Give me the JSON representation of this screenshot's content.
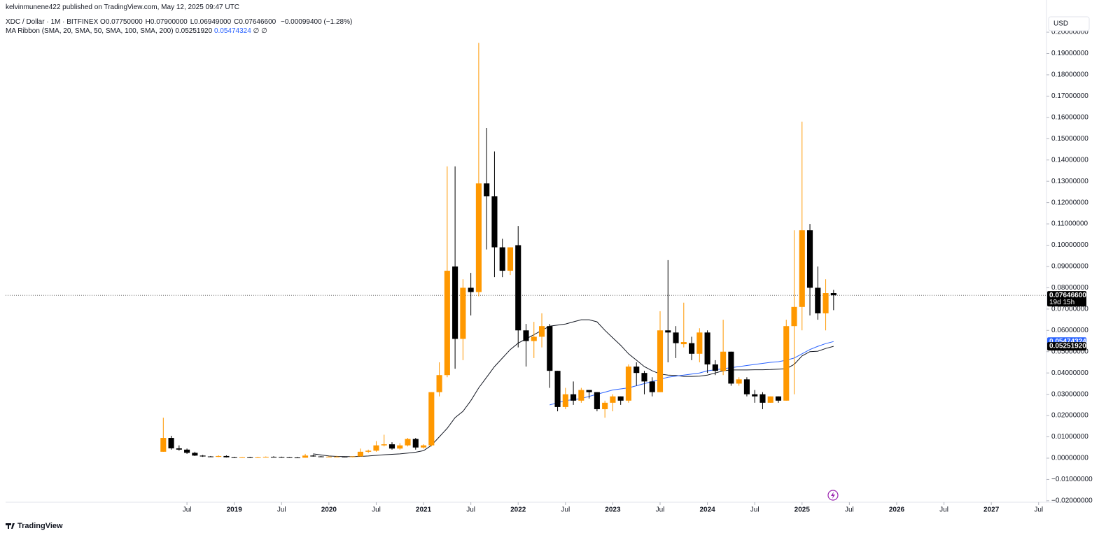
{
  "chart_data": {
    "type": "candlestick",
    "publisher": "kelvinmunene422 published on TradingView.com, May 12, 2025 09:47 UTC",
    "legend": {
      "symbol": "XDC / Dollar · 1M · BITFINEX",
      "fields": [
        {
          "key": "O",
          "text": "0.07750000"
        },
        {
          "key": "H",
          "text": "0.07900000"
        },
        {
          "key": "L",
          "text": "0.06949000"
        },
        {
          "key": "C",
          "text": "0.07646600"
        }
      ],
      "change": "−0.00099400 (−1.28%)"
    },
    "indicator": {
      "name": "MA Ribbon (SMA, 20, SMA, 50, SMA, 100, SMA, 200)",
      "empty": "∅ ∅"
    },
    "currency": "USD",
    "countdown": "19d 15h",
    "brand": "TradingView",
    "up_color": "#ff9800",
    "down_color": "#000000",
    "categories": [
      "2018-04",
      "2018-05",
      "2018-06",
      "2018-07",
      "2018-08",
      "2018-09",
      "2018-10",
      "2018-11",
      "2018-12",
      "2019-01",
      "2019-02",
      "2019-03",
      "2019-04",
      "2019-05",
      "2019-06",
      "2019-07",
      "2019-08",
      "2019-09",
      "2019-10",
      "2019-11",
      "2019-12",
      "2020-01",
      "2020-02",
      "2020-03",
      "2020-04",
      "2020-05",
      "2020-06",
      "2020-07",
      "2020-08",
      "2020-09",
      "2020-10",
      "2020-11",
      "2020-12",
      "2021-01",
      "2021-02",
      "2021-03",
      "2021-04",
      "2021-05",
      "2021-06",
      "2021-07",
      "2021-08",
      "2021-09",
      "2021-10",
      "2021-11",
      "2021-12",
      "2022-01",
      "2022-02",
      "2022-03",
      "2022-04",
      "2022-05",
      "2022-06",
      "2022-07",
      "2022-08",
      "2022-09",
      "2022-10",
      "2022-11",
      "2022-12",
      "2023-01",
      "2023-02",
      "2023-03",
      "2023-04",
      "2023-05",
      "2023-06",
      "2023-07",
      "2023-08",
      "2023-09",
      "2023-10",
      "2023-11",
      "2023-12",
      "2024-01",
      "2024-02",
      "2024-03",
      "2024-04",
      "2024-05",
      "2024-06",
      "2024-07",
      "2024-08",
      "2024-09",
      "2024-10",
      "2024-11",
      "2024-12",
      "2025-01",
      "2025-02",
      "2025-03",
      "2025-04",
      "2025-05"
    ],
    "candles": [
      {
        "o": 0.003,
        "h": 0.019,
        "l": 0.003,
        "c": 0.0095
      },
      {
        "o": 0.0095,
        "h": 0.0105,
        "l": 0.004,
        "c": 0.0046
      },
      {
        "o": 0.0046,
        "h": 0.006,
        "l": 0.0035,
        "c": 0.004
      },
      {
        "o": 0.004,
        "h": 0.0045,
        "l": 0.002,
        "c": 0.0025
      },
      {
        "o": 0.0025,
        "h": 0.003,
        "l": 0.001,
        "c": 0.0012
      },
      {
        "o": 0.0012,
        "h": 0.0015,
        "l": 0.0006,
        "c": 0.0008
      },
      {
        "o": 0.0008,
        "h": 0.001,
        "l": 0.0005,
        "c": 0.0006
      },
      {
        "o": 0.0006,
        "h": 0.0013,
        "l": 0.0005,
        "c": 0.001
      },
      {
        "o": 0.001,
        "h": 0.0013,
        "l": 0.0003,
        "c": 0.0004
      },
      {
        "o": 0.0004,
        "h": 0.0006,
        "l": 0.0003,
        "c": 0.0003
      },
      {
        "o": 0.0003,
        "h": 0.0005,
        "l": 0.0003,
        "c": 0.0004
      },
      {
        "o": 0.0004,
        "h": 0.0006,
        "l": 0.0003,
        "c": 0.0003
      },
      {
        "o": 0.0003,
        "h": 0.0006,
        "l": 0.0003,
        "c": 0.0004
      },
      {
        "o": 0.0004,
        "h": 0.0008,
        "l": 0.0003,
        "c": 0.0006
      },
      {
        "o": 0.0006,
        "h": 0.0009,
        "l": 0.0004,
        "c": 0.0005
      },
      {
        "o": 0.0005,
        "h": 0.0007,
        "l": 0.0003,
        "c": 0.0004
      },
      {
        "o": 0.0004,
        "h": 0.0005,
        "l": 0.0002,
        "c": 0.0003
      },
      {
        "o": 0.0003,
        "h": 0.0005,
        "l": 0.0002,
        "c": 0.0002
      },
      {
        "o": 0.0002,
        "h": 0.002,
        "l": 0.0002,
        "c": 0.0012
      },
      {
        "o": 0.0012,
        "h": 0.0016,
        "l": 0.0007,
        "c": 0.0008
      },
      {
        "o": 0.0008,
        "h": 0.001,
        "l": 0.0005,
        "c": 0.0006
      },
      {
        "o": 0.0006,
        "h": 0.0009,
        "l": 0.0005,
        "c": 0.0007
      },
      {
        "o": 0.0007,
        "h": 0.0011,
        "l": 0.0006,
        "c": 0.0007
      },
      {
        "o": 0.0007,
        "h": 0.0008,
        "l": 0.0004,
        "c": 0.0005
      },
      {
        "o": 0.0005,
        "h": 0.0009,
        "l": 0.0004,
        "c": 0.0008
      },
      {
        "o": 0.0008,
        "h": 0.0045,
        "l": 0.0007,
        "c": 0.003
      },
      {
        "o": 0.003,
        "h": 0.004,
        "l": 0.0025,
        "c": 0.0035
      },
      {
        "o": 0.0035,
        "h": 0.008,
        "l": 0.003,
        "c": 0.006
      },
      {
        "o": 0.006,
        "h": 0.011,
        "l": 0.0055,
        "c": 0.0065
      },
      {
        "o": 0.0065,
        "h": 0.0075,
        "l": 0.004,
        "c": 0.0045
      },
      {
        "o": 0.0045,
        "h": 0.007,
        "l": 0.004,
        "c": 0.006
      },
      {
        "o": 0.006,
        "h": 0.0095,
        "l": 0.0055,
        "c": 0.009
      },
      {
        "o": 0.009,
        "h": 0.0095,
        "l": 0.004,
        "c": 0.005
      },
      {
        "o": 0.005,
        "h": 0.0065,
        "l": 0.0045,
        "c": 0.006
      },
      {
        "o": 0.006,
        "h": 0.031,
        "l": 0.0055,
        "c": 0.031
      },
      {
        "o": 0.031,
        "h": 0.045,
        "l": 0.029,
        "c": 0.039
      },
      {
        "o": 0.039,
        "h": 0.137,
        "l": 0.038,
        "c": 0.088
      },
      {
        "o": 0.09,
        "h": 0.137,
        "l": 0.042,
        "c": 0.056
      },
      {
        "o": 0.056,
        "h": 0.084,
        "l": 0.046,
        "c": 0.08
      },
      {
        "o": 0.08,
        "h": 0.087,
        "l": 0.067,
        "c": 0.078
      },
      {
        "o": 0.078,
        "h": 0.195,
        "l": 0.076,
        "c": 0.129
      },
      {
        "o": 0.129,
        "h": 0.155,
        "l": 0.098,
        "c": 0.123
      },
      {
        "o": 0.123,
        "h": 0.144,
        "l": 0.085,
        "c": 0.099
      },
      {
        "o": 0.099,
        "h": 0.103,
        "l": 0.085,
        "c": 0.088
      },
      {
        "o": 0.088,
        "h": 0.099,
        "l": 0.086,
        "c": 0.099
      },
      {
        "o": 0.1,
        "h": 0.109,
        "l": 0.052,
        "c": 0.06
      },
      {
        "o": 0.06,
        "h": 0.063,
        "l": 0.043,
        "c": 0.055
      },
      {
        "o": 0.055,
        "h": 0.064,
        "l": 0.047,
        "c": 0.057
      },
      {
        "o": 0.057,
        "h": 0.068,
        "l": 0.052,
        "c": 0.062
      },
      {
        "o": 0.062,
        "h": 0.063,
        "l": 0.033,
        "c": 0.041
      },
      {
        "o": 0.041,
        "h": 0.041,
        "l": 0.022,
        "c": 0.024
      },
      {
        "o": 0.024,
        "h": 0.033,
        "l": 0.023,
        "c": 0.03
      },
      {
        "o": 0.03,
        "h": 0.036,
        "l": 0.025,
        "c": 0.027
      },
      {
        "o": 0.027,
        "h": 0.033,
        "l": 0.026,
        "c": 0.032
      },
      {
        "o": 0.032,
        "h": 0.032,
        "l": 0.028,
        "c": 0.031
      },
      {
        "o": 0.031,
        "h": 0.031,
        "l": 0.022,
        "c": 0.023
      },
      {
        "o": 0.023,
        "h": 0.027,
        "l": 0.019,
        "c": 0.026
      },
      {
        "o": 0.026,
        "h": 0.03,
        "l": 0.022,
        "c": 0.029
      },
      {
        "o": 0.029,
        "h": 0.029,
        "l": 0.025,
        "c": 0.027
      },
      {
        "o": 0.027,
        "h": 0.044,
        "l": 0.026,
        "c": 0.043
      },
      {
        "o": 0.043,
        "h": 0.045,
        "l": 0.034,
        "c": 0.04
      },
      {
        "o": 0.04,
        "h": 0.041,
        "l": 0.03,
        "c": 0.036
      },
      {
        "o": 0.036,
        "h": 0.038,
        "l": 0.029,
        "c": 0.031
      },
      {
        "o": 0.031,
        "h": 0.069,
        "l": 0.031,
        "c": 0.06
      },
      {
        "o": 0.06,
        "h": 0.093,
        "l": 0.045,
        "c": 0.059
      },
      {
        "o": 0.059,
        "h": 0.062,
        "l": 0.047,
        "c": 0.054
      },
      {
        "o": 0.0535,
        "h": 0.073,
        "l": 0.052,
        "c": 0.0545
      },
      {
        "o": 0.054,
        "h": 0.057,
        "l": 0.046,
        "c": 0.049
      },
      {
        "o": 0.049,
        "h": 0.061,
        "l": 0.045,
        "c": 0.059
      },
      {
        "o": 0.059,
        "h": 0.06,
        "l": 0.04,
        "c": 0.044
      },
      {
        "o": 0.044,
        "h": 0.046,
        "l": 0.039,
        "c": 0.041
      },
      {
        "o": 0.041,
        "h": 0.065,
        "l": 0.039,
        "c": 0.05
      },
      {
        "o": 0.05,
        "h": 0.05,
        "l": 0.034,
        "c": 0.035
      },
      {
        "o": 0.035,
        "h": 0.038,
        "l": 0.034,
        "c": 0.037
      },
      {
        "o": 0.037,
        "h": 0.038,
        "l": 0.029,
        "c": 0.03
      },
      {
        "o": 0.03,
        "h": 0.032,
        "l": 0.026,
        "c": 0.029
      },
      {
        "o": 0.03,
        "h": 0.031,
        "l": 0.023,
        "c": 0.026
      },
      {
        "o": 0.026,
        "h": 0.029,
        "l": 0.026,
        "c": 0.029
      },
      {
        "o": 0.029,
        "h": 0.029,
        "l": 0.026,
        "c": 0.027
      },
      {
        "o": 0.027,
        "h": 0.065,
        "l": 0.027,
        "c": 0.062
      },
      {
        "o": 0.062,
        "h": 0.107,
        "l": 0.03,
        "c": 0.071
      },
      {
        "o": 0.071,
        "h": 0.158,
        "l": 0.06,
        "c": 0.107
      },
      {
        "o": 0.107,
        "h": 0.11,
        "l": 0.067,
        "c": 0.08
      },
      {
        "o": 0.08,
        "h": 0.09,
        "l": 0.065,
        "c": 0.068
      },
      {
        "o": 0.068,
        "h": 0.084,
        "l": 0.06,
        "c": 0.0775
      },
      {
        "o": 0.0775,
        "h": 0.079,
        "l": 0.06949,
        "c": 0.076466
      }
    ],
    "series": [
      {
        "color": "#131722",
        "last_label": "0.05251920",
        "values": [
          null,
          null,
          null,
          null,
          null,
          null,
          null,
          null,
          null,
          null,
          null,
          null,
          null,
          null,
          null,
          null,
          null,
          null,
          null,
          0.002,
          0.0015,
          0.001,
          0.0008,
          0.0007,
          0.0007,
          0.0008,
          0.001,
          0.0013,
          0.0016,
          0.0018,
          0.002,
          0.0024,
          0.0028,
          0.0035,
          0.006,
          0.01,
          0.014,
          0.019,
          0.022,
          0.027,
          0.033,
          0.038,
          0.043,
          0.047,
          0.051,
          0.054,
          0.056,
          0.058,
          0.06,
          0.062,
          0.0625,
          0.063,
          0.064,
          0.065,
          0.065,
          0.064,
          0.06,
          0.0565,
          0.053,
          0.049,
          0.046,
          0.043,
          0.041,
          0.0395,
          0.039,
          0.0388,
          0.0384,
          0.0384,
          0.0385,
          0.039,
          0.04,
          0.041,
          0.0414,
          0.0414,
          0.0414,
          0.0415,
          0.0415,
          0.0416,
          0.0418,
          0.042,
          0.044,
          0.048,
          0.05,
          0.0502,
          0.0515,
          0.0525192
        ]
      },
      {
        "color": "#2962ff",
        "last_label": "0.05474324",
        "values": [
          null,
          null,
          null,
          null,
          null,
          null,
          null,
          null,
          null,
          null,
          null,
          null,
          null,
          null,
          null,
          null,
          null,
          null,
          null,
          null,
          null,
          null,
          null,
          null,
          null,
          null,
          null,
          null,
          null,
          null,
          null,
          null,
          null,
          null,
          null,
          null,
          null,
          null,
          null,
          null,
          null,
          null,
          null,
          null,
          null,
          null,
          null,
          null,
          null,
          0.025,
          0.026,
          0.027,
          0.0275,
          0.028,
          0.029,
          0.03,
          0.031,
          0.032,
          0.0325,
          0.033,
          0.034,
          0.035,
          0.036,
          0.037,
          0.038,
          0.0385,
          0.039,
          0.0395,
          0.04,
          0.041,
          0.0415,
          0.042,
          0.0425,
          0.043,
          0.0435,
          0.044,
          0.0445,
          0.045,
          0.0453,
          0.046,
          0.047,
          0.049,
          0.051,
          0.0525,
          0.0538,
          0.05474324
        ]
      }
    ],
    "xlim": [
      "2016-08",
      "2027-08"
    ],
    "xticks": [
      {
        "value": "2018-07",
        "label": "Jul"
      },
      {
        "value": "2019-01",
        "label": "2019"
      },
      {
        "value": "2019-07",
        "label": "Jul"
      },
      {
        "value": "2020-01",
        "label": "2020"
      },
      {
        "value": "2020-07",
        "label": "Jul"
      },
      {
        "value": "2021-01",
        "label": "2021"
      },
      {
        "value": "2021-07",
        "label": "Jul"
      },
      {
        "value": "2022-01",
        "label": "2022"
      },
      {
        "value": "2022-07",
        "label": "Jul"
      },
      {
        "value": "2023-01",
        "label": "2023"
      },
      {
        "value": "2023-07",
        "label": "Jul"
      },
      {
        "value": "2024-01",
        "label": "2024"
      },
      {
        "value": "2024-07",
        "label": "Jul"
      },
      {
        "value": "2025-01",
        "label": "2025"
      },
      {
        "value": "2025-07",
        "label": "Jul"
      },
      {
        "value": "2026-01",
        "label": "2026"
      },
      {
        "value": "2026-07",
        "label": "Jul"
      },
      {
        "value": "2027-01",
        "label": "2027"
      },
      {
        "value": "2027-07",
        "label": "Jul"
      }
    ],
    "ylim": [
      -0.0207,
      0.2079
    ],
    "yticks": [
      {
        "value": -0.02,
        "label": "−0.02000000"
      },
      {
        "value": -0.01,
        "label": "−0.01000000"
      },
      {
        "value": 0,
        "label": "0.00000000"
      },
      {
        "value": 0.01,
        "label": "0.01000000"
      },
      {
        "value": 0.02,
        "label": "0.02000000"
      },
      {
        "value": 0.03,
        "label": "0.03000000"
      },
      {
        "value": 0.04,
        "label": "0.04000000"
      },
      {
        "value": 0.05,
        "label": "0.05000000"
      },
      {
        "value": 0.06,
        "label": "0.06000000"
      },
      {
        "value": 0.07,
        "label": "0.07000000"
      },
      {
        "value": 0.08,
        "label": "0.08000000"
      },
      {
        "value": 0.09,
        "label": "0.09000000"
      },
      {
        "value": 0.1,
        "label": "0.10000000"
      },
      {
        "value": 0.11,
        "label": "0.11000000"
      },
      {
        "value": 0.12,
        "label": "0.12000000"
      },
      {
        "value": 0.13,
        "label": "0.13000000"
      },
      {
        "value": 0.14,
        "label": "0.14000000"
      },
      {
        "value": 0.15,
        "label": "0.15000000"
      },
      {
        "value": 0.16,
        "label": "0.16000000"
      },
      {
        "value": 0.17,
        "label": "0.17000000"
      },
      {
        "value": 0.18,
        "label": "0.18000000"
      },
      {
        "value": 0.19,
        "label": "0.19000000"
      },
      {
        "value": 0.2,
        "label": "0.20000000"
      }
    ],
    "grid": false
  }
}
